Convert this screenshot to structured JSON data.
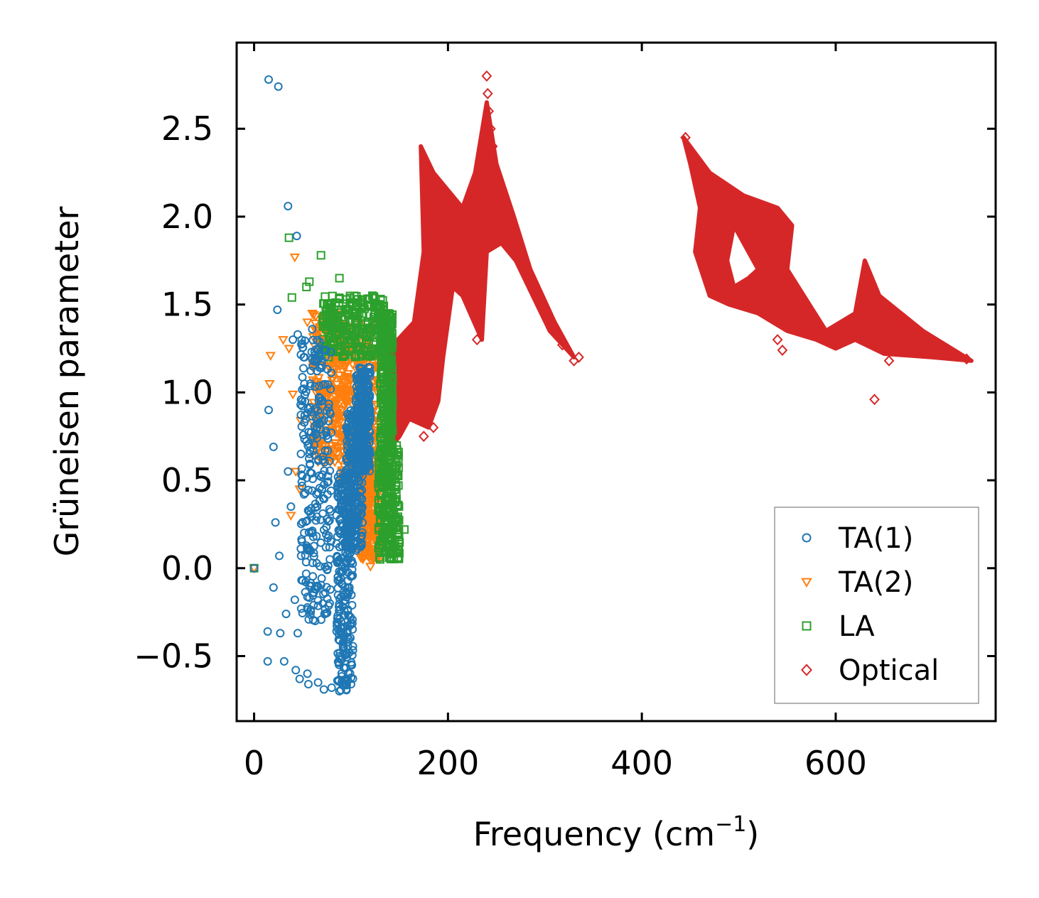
{
  "chart_data": {
    "type": "scatter",
    "title": "",
    "xlabel": "Frequency (cm",
    "xlabel_sup": "−1",
    "xlabel_suffix": ")",
    "ylabel": "Grüneisen parameter",
    "xlim": [
      -18,
      765
    ],
    "ylim": [
      -0.87,
      2.99
    ],
    "xticks": [
      0,
      200,
      400,
      600
    ],
    "xtick_labels": [
      "0",
      "200",
      "400",
      "600"
    ],
    "yticks": [
      -0.5,
      0.0,
      0.5,
      1.0,
      1.5,
      2.0,
      2.5
    ],
    "ytick_labels": [
      "−0.5",
      "0.0",
      "0.5",
      "1.0",
      "1.5",
      "2.0",
      "2.5"
    ],
    "grid": false,
    "legend_position": "lower right",
    "series": [
      {
        "name": "TA(1)",
        "marker": "circle",
        "color": "#1f77b4",
        "points": [
          [
            0,
            0.0
          ],
          [
            15,
            2.78
          ],
          [
            25,
            2.74
          ],
          [
            35,
            2.06
          ],
          [
            44,
            1.89
          ],
          [
            24,
            1.47
          ],
          [
            15,
            0.9
          ],
          [
            20,
            0.69
          ],
          [
            22,
            0.26
          ],
          [
            26,
            0.07
          ],
          [
            20,
            -0.11
          ],
          [
            14,
            -0.36
          ],
          [
            27,
            -0.37
          ],
          [
            14,
            -0.53
          ],
          [
            31,
            -0.53
          ],
          [
            33,
            -0.26
          ],
          [
            35,
            0.55
          ],
          [
            38,
            0.35
          ],
          [
            40,
            1.3
          ],
          [
            45,
            1.33
          ],
          [
            48,
            0.93
          ],
          [
            42,
            -0.18
          ],
          [
            45,
            -0.37
          ],
          [
            43,
            -0.58
          ],
          [
            47,
            -0.63
          ],
          [
            55,
            -0.6
          ],
          [
            56,
            -0.66
          ],
          [
            60,
            1.36
          ],
          [
            62,
            0.7
          ],
          [
            65,
            0.35
          ],
          [
            66,
            -0.65
          ],
          [
            70,
            0.45
          ],
          [
            72,
            -0.69
          ],
          [
            78,
            -0.2
          ],
          [
            80,
            -0.68
          ],
          [
            85,
            0.3
          ],
          [
            88,
            -0.7
          ],
          [
            95,
            -0.69
          ],
          [
            100,
            -0.66
          ],
          [
            105,
            0.3
          ],
          [
            108,
            0.55
          ],
          [
            112,
            0.85
          ],
          [
            118,
            1.1
          ],
          [
            52,
            1.2
          ],
          [
            58,
            1.05
          ],
          [
            60,
            0.2
          ],
          [
            57,
            -0.1
          ],
          [
            63,
            -0.3
          ]
        ],
        "bands": [
          {
            "x_range": [
              85,
              102
            ],
            "y_range": [
              -0.7,
              0.55
            ]
          },
          {
            "x_range": [
              95,
              112
            ],
            "y_range": [
              0.1,
              0.9
            ]
          },
          {
            "x_range": [
              105,
              120
            ],
            "y_range": [
              0.55,
              1.15
            ]
          },
          {
            "x_range": [
              48,
              80
            ],
            "y_range": [
              -0.3,
              1.3
            ]
          }
        ]
      },
      {
        "name": "TA(2)",
        "marker": "triangle_down",
        "color": "#ff7f0e",
        "points": [
          [
            0,
            0.0
          ],
          [
            42,
            1.77
          ],
          [
            17,
            1.21
          ],
          [
            30,
            1.3
          ],
          [
            16,
            1.05
          ],
          [
            36,
            1.25
          ],
          [
            40,
            0.99
          ],
          [
            48,
            0.84
          ],
          [
            43,
            0.55
          ],
          [
            47,
            0.45
          ],
          [
            38,
            0.3
          ],
          [
            55,
            1.4
          ],
          [
            60,
            1.45
          ],
          [
            120,
            0.01
          ],
          [
            112,
            0.1
          ],
          [
            118,
            0.3
          ],
          [
            124,
            0.2
          ]
        ],
        "bands": [
          {
            "x_range": [
              60,
              95
            ],
            "y_range": [
              0.6,
              1.45
            ]
          },
          {
            "x_range": [
              90,
              130
            ],
            "y_range": [
              0.45,
              1.4
            ]
          },
          {
            "x_range": [
              110,
              130
            ],
            "y_range": [
              0.05,
              0.6
            ]
          }
        ]
      },
      {
        "name": "LA",
        "marker": "square",
        "color": "#2ca02c",
        "points": [
          [
            0,
            0.0
          ],
          [
            36,
            1.88
          ],
          [
            69,
            1.78
          ],
          [
            57,
            1.63
          ],
          [
            54,
            1.6
          ],
          [
            39,
            1.54
          ],
          [
            88,
            1.65
          ],
          [
            122,
            1.55
          ],
          [
            155,
            0.22
          ],
          [
            145,
            0.15
          ],
          [
            130,
            0.05
          ]
        ],
        "bands": [
          {
            "x_range": [
              70,
              135
            ],
            "y_range": [
              1.2,
              1.55
            ]
          },
          {
            "x_range": [
              130,
              143
            ],
            "y_range": [
              0.7,
              1.45
            ]
          },
          {
            "x_range": [
              128,
              150
            ],
            "y_range": [
              0.05,
              0.7
            ]
          }
        ]
      },
      {
        "name": "Optical",
        "marker": "diamond",
        "color": "#d62728",
        "points": [
          [
            240,
            2.8
          ],
          [
            241,
            2.7
          ],
          [
            242,
            2.6
          ],
          [
            244,
            2.5
          ],
          [
            246,
            2.4
          ],
          [
            330,
            1.18
          ],
          [
            335,
            1.2
          ],
          [
            318,
            1.27
          ],
          [
            300,
            1.45
          ],
          [
            280,
            1.7
          ],
          [
            270,
            1.85
          ],
          [
            230,
            1.3
          ],
          [
            175,
            0.75
          ],
          [
            185,
            0.8
          ],
          [
            640,
            0.96
          ],
          [
            655,
            1.18
          ],
          [
            735,
            1.19
          ],
          [
            545,
            1.24
          ],
          [
            540,
            1.3
          ],
          [
            510,
            1.55
          ],
          [
            520,
            1.75
          ],
          [
            445,
            2.45
          ],
          [
            130,
            1.4
          ],
          [
            125,
            1.38
          ]
        ]
      }
    ],
    "regions": [
      {
        "series": "Optical",
        "polygon": [
          [
            135,
            0.65
          ],
          [
            140,
            1.25
          ],
          [
            165,
            1.4
          ],
          [
            175,
            1.8
          ],
          [
            172,
            2.4
          ],
          [
            185,
            2.25
          ],
          [
            215,
            2.05
          ],
          [
            228,
            2.25
          ],
          [
            240,
            2.65
          ],
          [
            250,
            2.3
          ],
          [
            268,
            2.0
          ],
          [
            285,
            1.7
          ],
          [
            310,
            1.4
          ],
          [
            330,
            1.2
          ],
          [
            305,
            1.35
          ],
          [
            270,
            1.75
          ],
          [
            255,
            1.85
          ],
          [
            240,
            1.8
          ],
          [
            235,
            1.3
          ],
          [
            215,
            1.55
          ],
          [
            205,
            1.6
          ],
          [
            195,
            1.2
          ],
          [
            190,
            0.95
          ],
          [
            180,
            0.8
          ],
          [
            160,
            0.85
          ],
          [
            150,
            0.75
          ]
        ]
      },
      {
        "series": "Optical",
        "polygon": [
          [
            443,
            2.45
          ],
          [
            470,
            2.25
          ],
          [
            505,
            2.12
          ],
          [
            540,
            2.05
          ],
          [
            555,
            1.95
          ],
          [
            550,
            1.7
          ],
          [
            590,
            1.35
          ],
          [
            620,
            1.45
          ],
          [
            630,
            1.75
          ],
          [
            645,
            1.55
          ],
          [
            690,
            1.35
          ],
          [
            740,
            1.18
          ],
          [
            700,
            1.2
          ],
          [
            650,
            1.22
          ],
          [
            620,
            1.3
          ],
          [
            600,
            1.25
          ],
          [
            580,
            1.3
          ],
          [
            550,
            1.35
          ],
          [
            520,
            1.45
          ],
          [
            490,
            1.5
          ],
          [
            470,
            1.55
          ],
          [
            455,
            1.8
          ],
          [
            460,
            2.05
          ],
          [
            450,
            2.3
          ]
        ],
        "hole": [
          [
            495,
            1.95
          ],
          [
            505,
            1.85
          ],
          [
            520,
            1.7
          ],
          [
            510,
            1.65
          ],
          [
            495,
            1.6
          ],
          [
            488,
            1.75
          ]
        ]
      }
    ]
  }
}
